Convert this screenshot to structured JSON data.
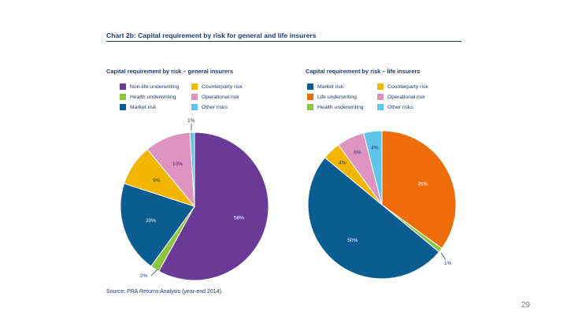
{
  "header": {
    "title": "Chart 2b:  Capital requirement by risk for general and life insurers"
  },
  "chart_data": [
    {
      "type": "pie",
      "title": "Capital requirement by risk – general insurers",
      "slices": [
        {
          "label": "Non-life underwriting",
          "value": 58,
          "text": "58%",
          "color": "#6b3a96"
        },
        {
          "label": "Health underwriting",
          "value": 2,
          "text": "2%",
          "color": "#8dc63f"
        },
        {
          "label": "Market risk",
          "value": 20,
          "text": "20%",
          "color": "#0b5c91"
        },
        {
          "label": "Counterparty risk",
          "value": 9,
          "text": "9%",
          "color": "#f2b600"
        },
        {
          "label": "Operational risk",
          "value": 10,
          "text": "10%",
          "color": "#de93c0"
        },
        {
          "label": "Other risks",
          "value": 1,
          "text": "1%",
          "color": "#5ec4ea"
        }
      ]
    },
    {
      "type": "pie",
      "title": "Capital requirement by risk – life insurers",
      "slices": [
        {
          "label": "Life underwriting",
          "value": 35,
          "text": "35%",
          "color": "#ee6d0a"
        },
        {
          "label": "Health underwriting",
          "value": 1,
          "text": "1%",
          "color": "#8dc63f"
        },
        {
          "label": "Market risk",
          "value": 50,
          "text": "50%",
          "color": "#0b5c91"
        },
        {
          "label": "Counterparty risk",
          "value": 4,
          "text": "4%",
          "color": "#f2b600"
        },
        {
          "label": "Operational risk",
          "value": 6,
          "text": "6%",
          "color": "#de93c0"
        },
        {
          "label": "Other risks",
          "value": 4,
          "text": "4%",
          "color": "#5ec4ea"
        }
      ]
    }
  ],
  "legends": [
    {
      "items": [
        {
          "label": "Non-life underwriting",
          "color": "#6b3a96"
        },
        {
          "label": "Health underwriting",
          "color": "#8dc63f"
        },
        {
          "label": "Market risk",
          "color": "#0b5c91"
        },
        {
          "label": "Counterparty risk",
          "color": "#f2b600"
        },
        {
          "label": "Operational risk",
          "color": "#de93c0"
        },
        {
          "label": "Other risks",
          "color": "#5ec4ea"
        }
      ]
    },
    {
      "items": [
        {
          "label": "Market risk",
          "color": "#0b5c91"
        },
        {
          "label": "Life underwriting",
          "color": "#ee6d0a"
        },
        {
          "label": "Health underwriting",
          "color": "#8dc63f"
        },
        {
          "label": "Counterparty risk",
          "color": "#f2b600"
        },
        {
          "label": "Operational risk",
          "color": "#de93c0"
        },
        {
          "label": "Other risks",
          "color": "#5ec4ea"
        }
      ]
    }
  ],
  "footer": {
    "source": "Source:  PRA Returns Analysis (year-end 2014).",
    "page_number": "29"
  }
}
